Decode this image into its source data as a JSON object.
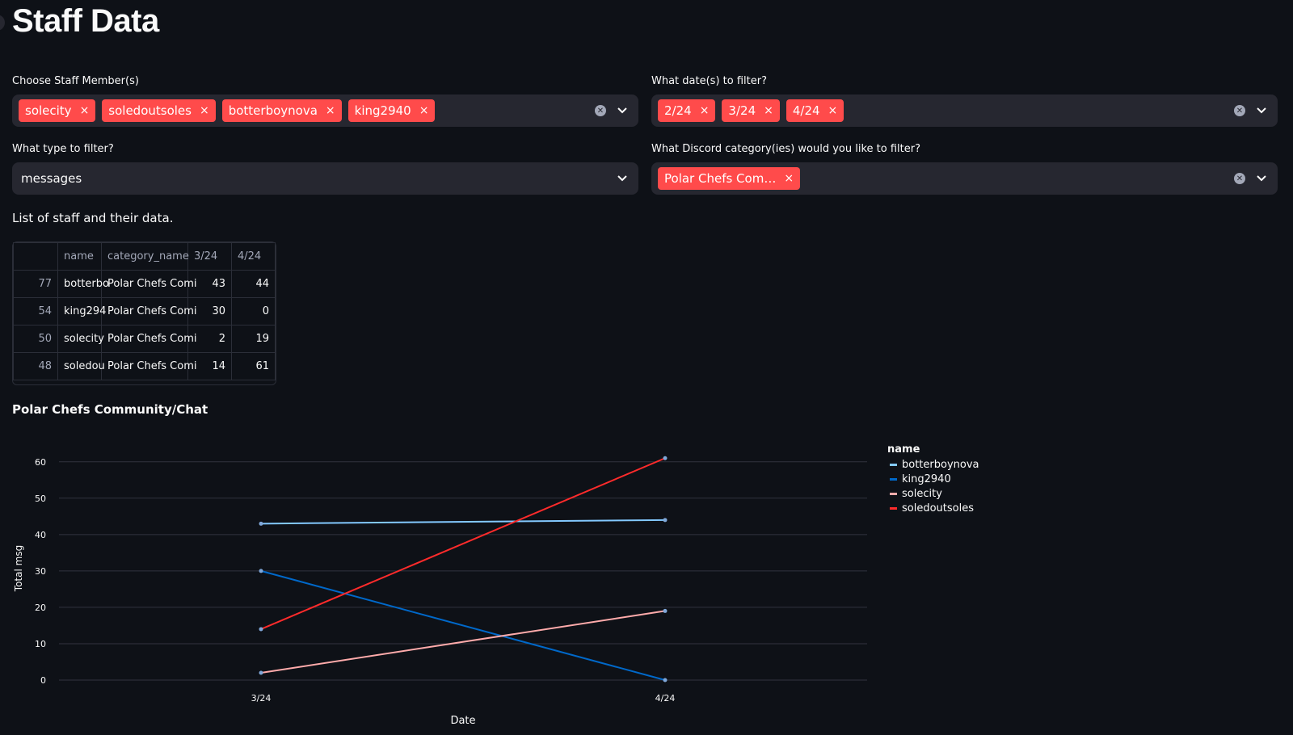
{
  "page": {
    "title": "Staff Data"
  },
  "filters": {
    "staff": {
      "label": "Choose Staff Member(s)",
      "tags": [
        "solecity",
        "soledoutsoles",
        "botterboynova",
        "king2940"
      ]
    },
    "dates": {
      "label": "What date(s) to filter?",
      "tags": [
        "2/24",
        "3/24",
        "4/24"
      ]
    },
    "type": {
      "label": "What type to filter?",
      "value": "messages"
    },
    "category": {
      "label": "What Discord category(ies) would you like to filter?",
      "tags": [
        "Polar Chefs Com…"
      ]
    }
  },
  "table": {
    "caption": "List of staff and their data.",
    "columns": [
      "",
      "name",
      "category_name",
      "3/24",
      "4/24"
    ],
    "rows": [
      {
        "index": "77",
        "name": "botterbo",
        "category": "Polar Chefs Comi",
        "v1": "43",
        "v2": "44"
      },
      {
        "index": "54",
        "name": "king294",
        "category": "Polar Chefs Comi",
        "v1": "30",
        "v2": "0"
      },
      {
        "index": "50",
        "name": "solecity",
        "category": "Polar Chefs Comi",
        "v1": "2",
        "v2": "19"
      },
      {
        "index": "48",
        "name": "soledou",
        "category": "Polar Chefs Comi",
        "v1": "14",
        "v2": "61"
      }
    ]
  },
  "chart_data": {
    "type": "line",
    "title": "Polar Chefs Community/Chat",
    "xlabel": "Date",
    "ylabel": "Total msg",
    "categories": [
      "3/24",
      "4/24"
    ],
    "ylim": [
      0,
      60
    ],
    "yticks": [
      0,
      10,
      20,
      30,
      40,
      50,
      60
    ],
    "legend_title": "name",
    "legend_position": "right",
    "series": [
      {
        "name": "botterboynova",
        "values": [
          43,
          44
        ],
        "color": "#83c9ff"
      },
      {
        "name": "king2940",
        "values": [
          30,
          0
        ],
        "color": "#0068c9"
      },
      {
        "name": "solecity",
        "values": [
          2,
          19
        ],
        "color": "#ffabab"
      },
      {
        "name": "soledoutsoles",
        "values": [
          14,
          61
        ],
        "color": "#ff2b2b"
      }
    ]
  },
  "icons": {
    "clear": "clear-circle-icon",
    "dropdown": "chevron-down-icon",
    "remove": "×"
  },
  "colors": {
    "accent": "#ff4b4b",
    "background": "#0e1117",
    "input": "#262730"
  }
}
